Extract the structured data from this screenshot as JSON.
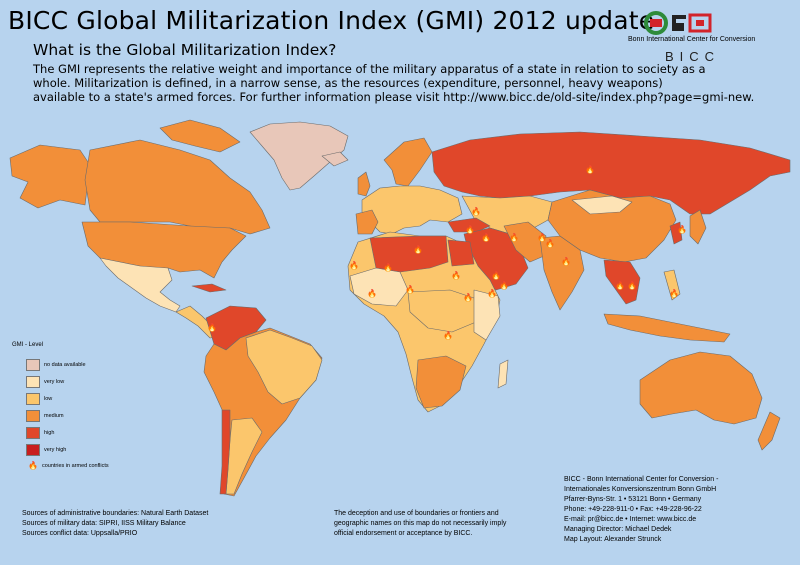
{
  "header": {
    "title": "BICC Global Militarization Index (GMI) 2012 update",
    "subtitle": "What is the Global Militarization Index?",
    "description": [
      "The GMI represents the relative weight and importance of the military apparatus of a state in relation to society as a",
      " whole. Militarization is defined, in a narrow sense, as the resources (expenditure, personnel, heavy weapons)",
      "available to a state's armed forces. For further information please visit http://www.bicc.de/old-site/index.php?page=gmi-new."
    ]
  },
  "logo": {
    "org_name": "Bonn International Center for Conversion",
    "letters": "BICC",
    "colors": {
      "green": "#2e8b3a",
      "red": "#d2232a"
    }
  },
  "legend": {
    "title": "GMI - Level",
    "items": [
      {
        "label": "no data available",
        "color": "#e8c7b9"
      },
      {
        "label": "very low",
        "color": "#fde3b5"
      },
      {
        "label": "low",
        "color": "#fbc66c"
      },
      {
        "label": "medium",
        "color": "#f28f39"
      },
      {
        "label": "high",
        "color": "#e0472a"
      },
      {
        "label": "very high",
        "color": "#c81e1e"
      }
    ],
    "conflict_label": "countries in armed conflicts",
    "conflict_icon": "flame-icon"
  },
  "sources": [
    "Sources of administrative boundaries: Natural Earth Dataset",
    "Sources of military data: SIPRI, IISS Military Balance",
    "Sources conflict data: Uppsalla/PRIO"
  ],
  "disclaimer": [
    "The deception and use of boundaries or frontiers and",
    "geographic names on this map do not necessarily imply",
    "official endorsement or acceptance by BICC."
  ],
  "contact": [
    "BICC - Bonn International Center for Conversion -",
    "Internationales Konversionszentrum Bonn GmbH",
    "Pfarrer-Byns-Str. 1 • 53121 Bonn • Germany",
    "Phone: +49-228-911-0 • Fax: +49-228-96-22",
    "E-mail: pr@bicc.de • Internet: www.bicc.de",
    "Managing Director: Michael Dedek",
    "Map Layout: Alexander Strunck"
  ],
  "map": {
    "ocean_color": "#b7d3ee",
    "border_color": "#6b6b6b"
  }
}
